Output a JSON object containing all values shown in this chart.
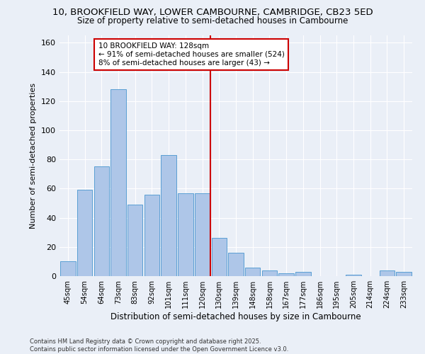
{
  "title_line1": "10, BROOKFIELD WAY, LOWER CAMBOURNE, CAMBRIDGE, CB23 5ED",
  "title_line2": "Size of property relative to semi-detached houses in Cambourne",
  "xlabel": "Distribution of semi-detached houses by size in Cambourne",
  "ylabel": "Number of semi-detached properties",
  "bar_labels": [
    "45sqm",
    "54sqm",
    "64sqm",
    "73sqm",
    "83sqm",
    "92sqm",
    "101sqm",
    "111sqm",
    "120sqm",
    "130sqm",
    "139sqm",
    "148sqm",
    "158sqm",
    "167sqm",
    "177sqm",
    "186sqm",
    "195sqm",
    "205sqm",
    "214sqm",
    "224sqm",
    "233sqm"
  ],
  "bar_values": [
    10,
    59,
    75,
    128,
    49,
    56,
    83,
    57,
    57,
    26,
    16,
    6,
    4,
    2,
    3,
    0,
    0,
    1,
    0,
    4,
    3
  ],
  "bar_color": "#aec6e8",
  "bar_edge_color": "#5a9fd4",
  "annotation_text": "10 BROOKFIELD WAY: 128sqm\n← 91% of semi-detached houses are smaller (524)\n8% of semi-detached houses are larger (43) →",
  "annotation_box_color": "#ffffff",
  "annotation_box_edge": "#cc0000",
  "vline_color": "#cc0000",
  "ylim": [
    0,
    165
  ],
  "yticks": [
    0,
    20,
    40,
    60,
    80,
    100,
    120,
    140,
    160
  ],
  "background_color": "#eaeff7",
  "footer_line1": "Contains HM Land Registry data © Crown copyright and database right 2025.",
  "footer_line2": "Contains public sector information licensed under the Open Government Licence v3.0."
}
